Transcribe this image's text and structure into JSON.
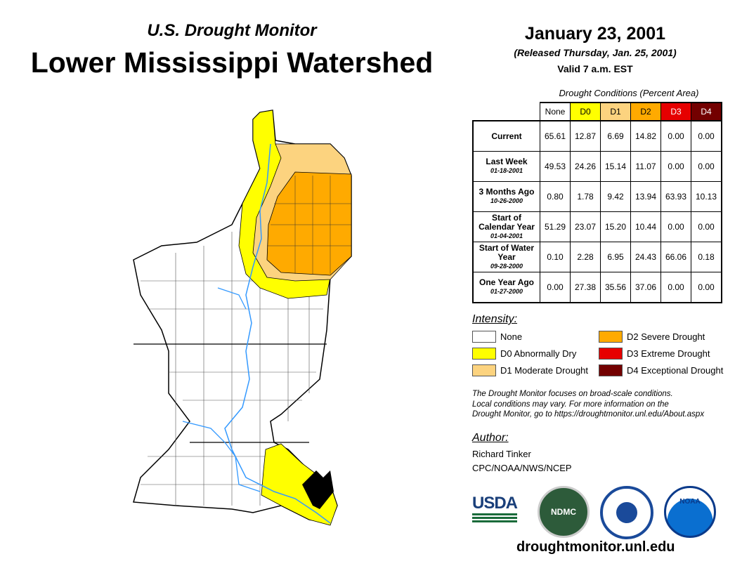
{
  "header": {
    "subtitle": "U.S. Drought Monitor",
    "title": "Lower Mississippi Watershed",
    "date": "January 23, 2001",
    "released": "(Released Thursday, Jan. 25, 2001)",
    "valid": "Valid 7 a.m. EST"
  },
  "table": {
    "caption": "Drought Conditions (Percent Area)",
    "columns": [
      {
        "label": "None",
        "bg": "#ffffff",
        "fg": "#000"
      },
      {
        "label": "D0",
        "bg": "#ffff00",
        "fg": "#000"
      },
      {
        "label": "D1",
        "bg": "#fcd37f",
        "fg": "#000"
      },
      {
        "label": "D2",
        "bg": "#ffaa00",
        "fg": "#000"
      },
      {
        "label": "D3",
        "bg": "#e60000",
        "fg": "#fff"
      },
      {
        "label": "D4",
        "bg": "#730000",
        "fg": "#fff"
      }
    ],
    "rows": [
      {
        "label": "Current",
        "date": "",
        "values": [
          "65.61",
          "12.87",
          "6.69",
          "14.82",
          "0.00",
          "0.00"
        ]
      },
      {
        "label": "Last Week",
        "date": "01-18-2001",
        "values": [
          "49.53",
          "24.26",
          "15.14",
          "11.07",
          "0.00",
          "0.00"
        ]
      },
      {
        "label": "3 Months Ago",
        "date": "10-26-2000",
        "values": [
          "0.80",
          "1.78",
          "9.42",
          "13.94",
          "63.93",
          "10.13"
        ]
      },
      {
        "label": "Start of Calendar Year",
        "date": "01-04-2001",
        "values": [
          "51.29",
          "23.07",
          "15.20",
          "10.44",
          "0.00",
          "0.00"
        ]
      },
      {
        "label": "Start of Water Year",
        "date": "09-28-2000",
        "values": [
          "0.10",
          "2.28",
          "6.95",
          "24.43",
          "66.06",
          "0.18"
        ]
      },
      {
        "label": "One Year Ago",
        "date": "01-27-2000",
        "values": [
          "0.00",
          "27.38",
          "35.56",
          "37.06",
          "0.00",
          "0.00"
        ]
      }
    ]
  },
  "legend": {
    "title": "Intensity:",
    "items": [
      {
        "label": "None",
        "color": "#ffffff"
      },
      {
        "label": "D0 Abnormally Dry",
        "color": "#ffff00"
      },
      {
        "label": "D1 Moderate Drought",
        "color": "#fcd37f"
      },
      {
        "label": "D2 Severe Drought",
        "color": "#ffaa00"
      },
      {
        "label": "D3 Extreme Drought",
        "color": "#e60000"
      },
      {
        "label": "D4 Exceptional Drought",
        "color": "#730000"
      }
    ]
  },
  "note": [
    "The Drought Monitor focuses on broad-scale conditions.",
    "Local conditions may vary. For more information on the",
    "Drought Monitor, go to https://droughtmonitor.unl.edu/About.aspx"
  ],
  "author": {
    "label": "Author:",
    "name": "Richard Tinker",
    "org": "CPC/NOAA/NWS/NCEP"
  },
  "logos": {
    "usda": "USDA",
    "ndmc": "NDMC",
    "doc": "",
    "noaa": "NOAA"
  },
  "footer_url": "droughtmonitor.unl.edu"
}
